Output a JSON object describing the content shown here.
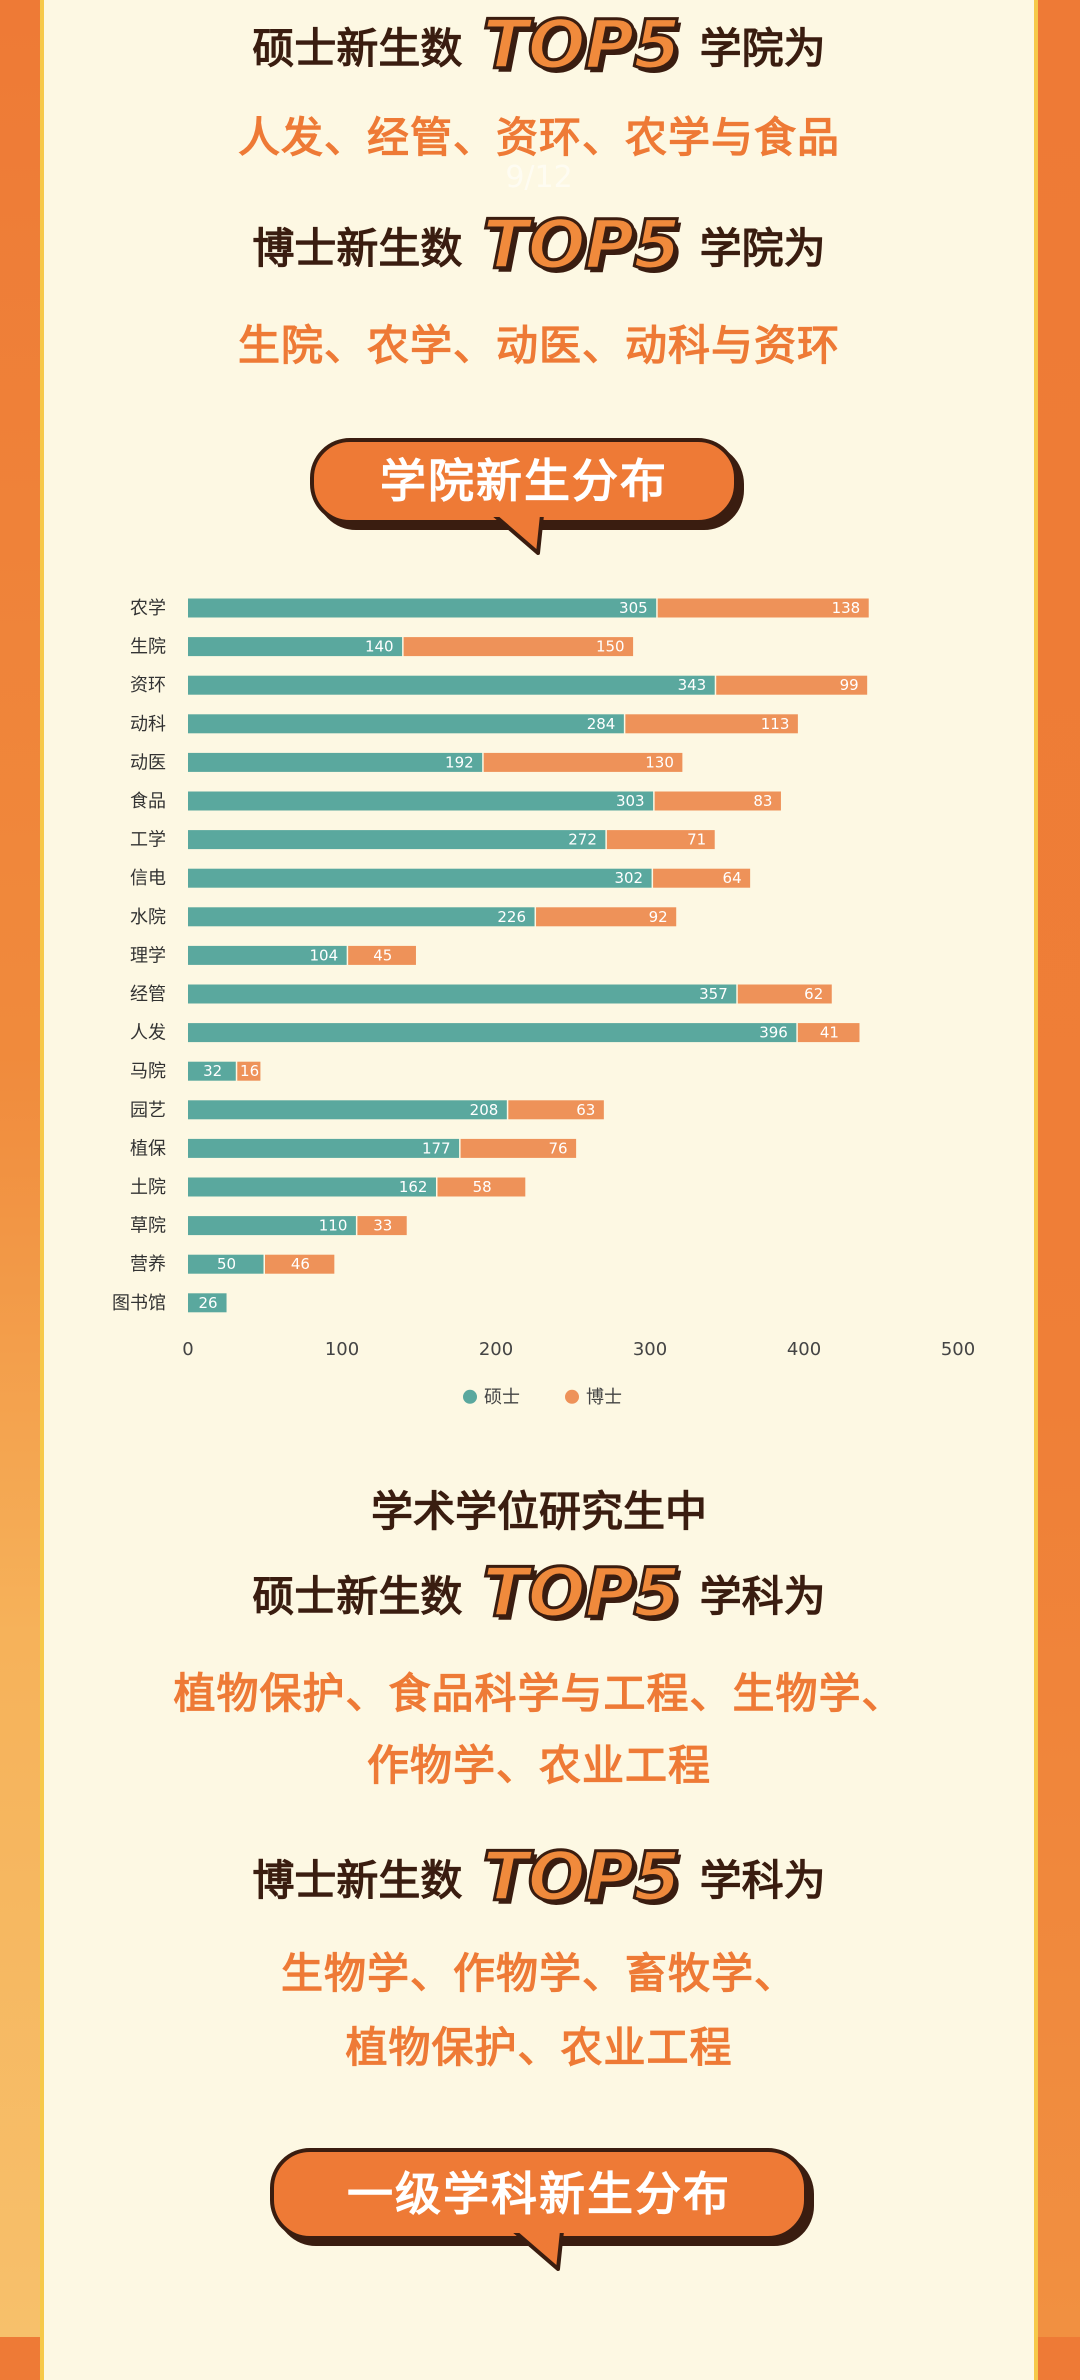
{
  "page_indicator": "9/12",
  "sec1": {
    "master_prefix": "硕士新生数",
    "top5": "TOP5",
    "college_suffix": "学院为",
    "master_list": "人发、经管、资环、农学与食品",
    "phd_prefix": "博士新生数",
    "phd_list": "生院、农学、动医、动科与资环"
  },
  "banner1": "学院新生分布",
  "sec2": {
    "heading": "学术学位研究生中",
    "master_prefix": "硕士新生数",
    "top5": "TOP5",
    "subject_suffix": "学科为",
    "master_list_1": "植物保护、食品科学与工程、生物学、",
    "master_list_2": "作物学、农业工程",
    "phd_prefix": "博士新生数",
    "phd_list_1": "生物学、作物学、畜牧学、",
    "phd_list_2": "植物保护、农业工程"
  },
  "banner2": "一级学科新生分布",
  "colors": {
    "master": "#5aa89e",
    "phd": "#ee9259",
    "accent": "#ee7a36",
    "dark": "#3a1d10"
  },
  "chart_data": {
    "type": "bar",
    "orientation": "horizontal",
    "stacked": true,
    "categories": [
      "农学",
      "生院",
      "资环",
      "动科",
      "动医",
      "食品",
      "工学",
      "信电",
      "水院",
      "理学",
      "经管",
      "人发",
      "马院",
      "园艺",
      "植保",
      "土院",
      "草院",
      "营养",
      "图书馆"
    ],
    "series": [
      {
        "name": "硕士",
        "values": [
          305,
          140,
          343,
          284,
          192,
          303,
          272,
          302,
          226,
          104,
          357,
          396,
          32,
          208,
          177,
          162,
          110,
          50,
          26
        ]
      },
      {
        "name": "博士",
        "values": [
          138,
          150,
          99,
          113,
          130,
          83,
          71,
          64,
          92,
          45,
          62,
          41,
          16,
          63,
          76,
          58,
          33,
          46,
          null
        ]
      }
    ],
    "xlim": [
      0,
      500
    ],
    "xticks": [
      0,
      100,
      200,
      300,
      400,
      500
    ],
    "legend": "bottom-center",
    "grid": false
  }
}
